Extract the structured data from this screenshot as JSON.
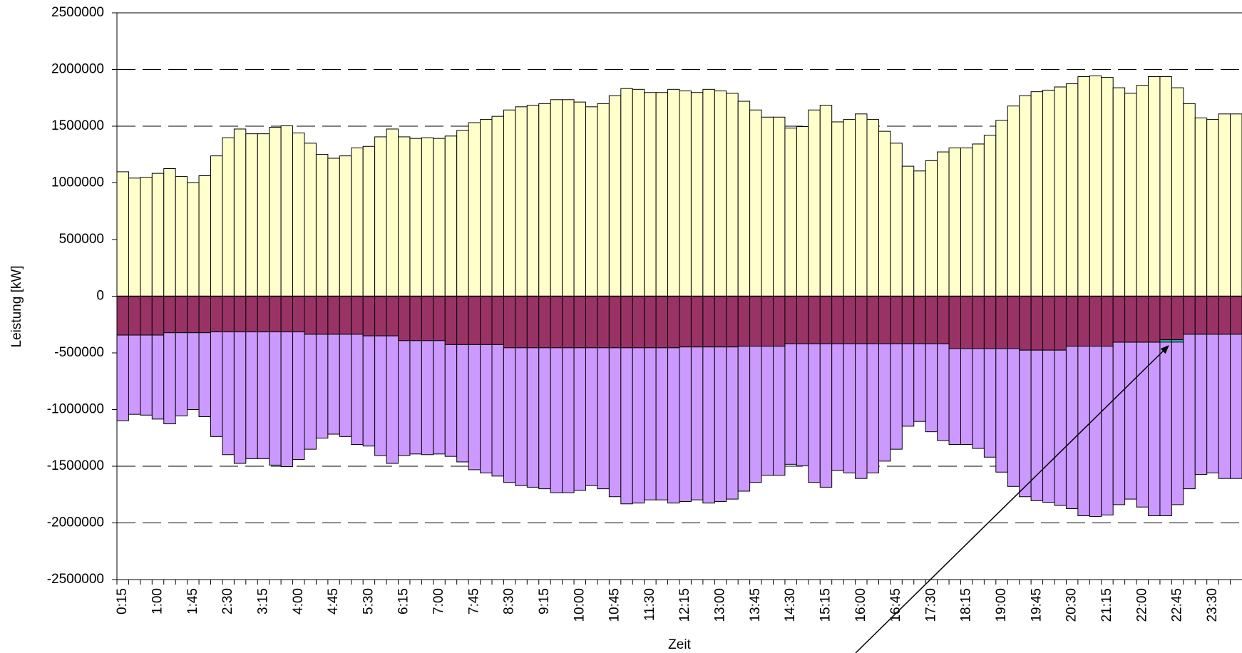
{
  "chart_data": {
    "type": "stacked_bar",
    "xlabel": "Zeit",
    "ylabel": "Leistung  [kW]",
    "categories": [
      "0:15",
      null,
      null,
      "1:00",
      null,
      null,
      "1:45",
      null,
      null,
      "2:30",
      null,
      null,
      "3:15",
      null,
      null,
      "4:00",
      null,
      null,
      "4:45",
      null,
      null,
      "5:30",
      null,
      null,
      "6:15",
      null,
      null,
      "7:00",
      null,
      null,
      "7:45",
      null,
      null,
      "8:30",
      null,
      null,
      "9:15",
      null,
      null,
      "10:00",
      null,
      null,
      "10:45",
      null,
      null,
      "11:30",
      null,
      null,
      "12:15",
      null,
      null,
      "13:00",
      null,
      null,
      "13:45",
      null,
      null,
      "14:30",
      null,
      null,
      "15:15",
      null,
      null,
      "16:00",
      null,
      null,
      "16:45",
      null,
      null,
      "17:30",
      null,
      null,
      "18:15",
      null,
      null,
      "19:00",
      null,
      null,
      "19:45",
      null,
      null,
      "20:30",
      null,
      null,
      "21:15",
      null,
      null,
      "22:00",
      null,
      null,
      "22:45",
      null,
      null,
      "23:30",
      null,
      null
    ],
    "series": [
      {
        "color": "#ffffcc",
        "values": [
          1098000,
          1042000,
          1049000,
          1084000,
          1126000,
          1056000,
          1000000,
          1063000,
          1238000,
          1398000,
          1475000,
          1433000,
          1433000,
          1490000,
          1503000,
          1440000,
          1350000,
          1252000,
          1217000,
          1238000,
          1308000,
          1322000,
          1406000,
          1475000,
          1406000,
          1392000,
          1398000,
          1392000,
          1413000,
          1462000,
          1531000,
          1559000,
          1587000,
          1643000,
          1671000,
          1685000,
          1699000,
          1734000,
          1734000,
          1713000,
          1671000,
          1699000,
          1769000,
          1832000,
          1825000,
          1797000,
          1797000,
          1825000,
          1811000,
          1797000,
          1825000,
          1811000,
          1790000,
          1720000,
          1643000,
          1580000,
          1580000,
          1483000,
          1497000,
          1643000,
          1685000,
          1538000,
          1559000,
          1608000,
          1559000,
          1455000,
          1350000,
          1147000,
          1105000,
          1196000,
          1273000,
          1308000,
          1308000,
          1343000,
          1420000,
          1552000,
          1678000,
          1769000,
          1804000,
          1818000,
          1846000,
          1874000,
          1937000,
          1944000,
          1930000,
          1839000,
          1790000,
          1860000,
          1937000,
          1937000,
          1839000,
          1699000,
          1573000,
          1559000,
          1608000,
          1608000
        ]
      },
      {
        "color": "#993366",
        "values": [
          -343000,
          -343000,
          -343000,
          -343000,
          -322000,
          -322000,
          -322000,
          -322000,
          -315000,
          -315000,
          -315000,
          -315000,
          -315000,
          -315000,
          -315000,
          -315000,
          -336000,
          -336000,
          -336000,
          -336000,
          -336000,
          -350000,
          -350000,
          -350000,
          -392000,
          -392000,
          -392000,
          -392000,
          -427000,
          -427000,
          -427000,
          -427000,
          -427000,
          -455000,
          -455000,
          -455000,
          -455000,
          -455000,
          -455000,
          -455000,
          -455000,
          -455000,
          -455000,
          -455000,
          -455000,
          -455000,
          -455000,
          -455000,
          -448000,
          -448000,
          -448000,
          -448000,
          -448000,
          -441000,
          -441000,
          -441000,
          -441000,
          -420000,
          -420000,
          -420000,
          -420000,
          -420000,
          -420000,
          -420000,
          -420000,
          -420000,
          -420000,
          -420000,
          -420000,
          -420000,
          -420000,
          -462000,
          -462000,
          -462000,
          -462000,
          -462000,
          -462000,
          -476000,
          -476000,
          -476000,
          -476000,
          -441000,
          -441000,
          -441000,
          -441000,
          -406000,
          -406000,
          -406000,
          -406000,
          -385000,
          -385000,
          -336000,
          -336000,
          -336000,
          -336000,
          -336000
        ]
      },
      {
        "color": "#33cccc",
        "values": [
          0,
          0,
          0,
          0,
          0,
          0,
          0,
          0,
          0,
          0,
          0,
          0,
          0,
          0,
          0,
          0,
          0,
          0,
          0,
          0,
          0,
          0,
          0,
          0,
          0,
          0,
          0,
          0,
          0,
          0,
          0,
          0,
          0,
          0,
          0,
          0,
          0,
          0,
          0,
          0,
          0,
          0,
          0,
          0,
          0,
          0,
          0,
          0,
          0,
          0,
          0,
          0,
          0,
          0,
          0,
          0,
          0,
          0,
          0,
          0,
          0,
          0,
          0,
          0,
          0,
          0,
          0,
          0,
          0,
          0,
          0,
          0,
          0,
          0,
          0,
          0,
          0,
          0,
          0,
          0,
          0,
          0,
          0,
          0,
          0,
          0,
          0,
          0,
          0,
          -20000,
          -20000,
          0,
          0,
          0,
          0,
          0
        ]
      },
      {
        "color": "#cc99ff",
        "values": [
          -755000,
          -699000,
          -706000,
          -741000,
          -804000,
          -734000,
          -678000,
          -741000,
          -923000,
          -1083000,
          -1160000,
          -1118000,
          -1118000,
          -1175000,
          -1188000,
          -1125000,
          -1014000,
          -916000,
          -881000,
          -902000,
          -972000,
          -972000,
          -1056000,
          -1125000,
          -1014000,
          -1000000,
          -1006000,
          -1000000,
          -986000,
          -1035000,
          -1104000,
          -1132000,
          -1160000,
          -1188000,
          -1216000,
          -1230000,
          -1244000,
          -1279000,
          -1279000,
          -1258000,
          -1216000,
          -1244000,
          -1314000,
          -1377000,
          -1370000,
          -1342000,
          -1342000,
          -1370000,
          -1363000,
          -1349000,
          -1377000,
          -1363000,
          -1342000,
          -1279000,
          -1202000,
          -1139000,
          -1139000,
          -1063000,
          -1077000,
          -1223000,
          -1265000,
          -1118000,
          -1139000,
          -1188000,
          -1139000,
          -1035000,
          -930000,
          -727000,
          -685000,
          -776000,
          -853000,
          -846000,
          -846000,
          -881000,
          -958000,
          -1090000,
          -1216000,
          -1293000,
          -1328000,
          -1342000,
          -1370000,
          -1433000,
          -1496000,
          -1503000,
          -1489000,
          -1433000,
          -1384000,
          -1454000,
          -1531000,
          -1532000,
          -1434000,
          -1363000,
          -1237000,
          -1223000,
          -1272000,
          -1272000
        ]
      }
    ],
    "ylim": [
      -2500000,
      2500000
    ],
    "yticks": [
      -2500000,
      -2000000,
      -1500000,
      -1000000,
      -500000,
      0,
      500000,
      1000000,
      1500000,
      2000000,
      2500000
    ],
    "grid": true
  }
}
